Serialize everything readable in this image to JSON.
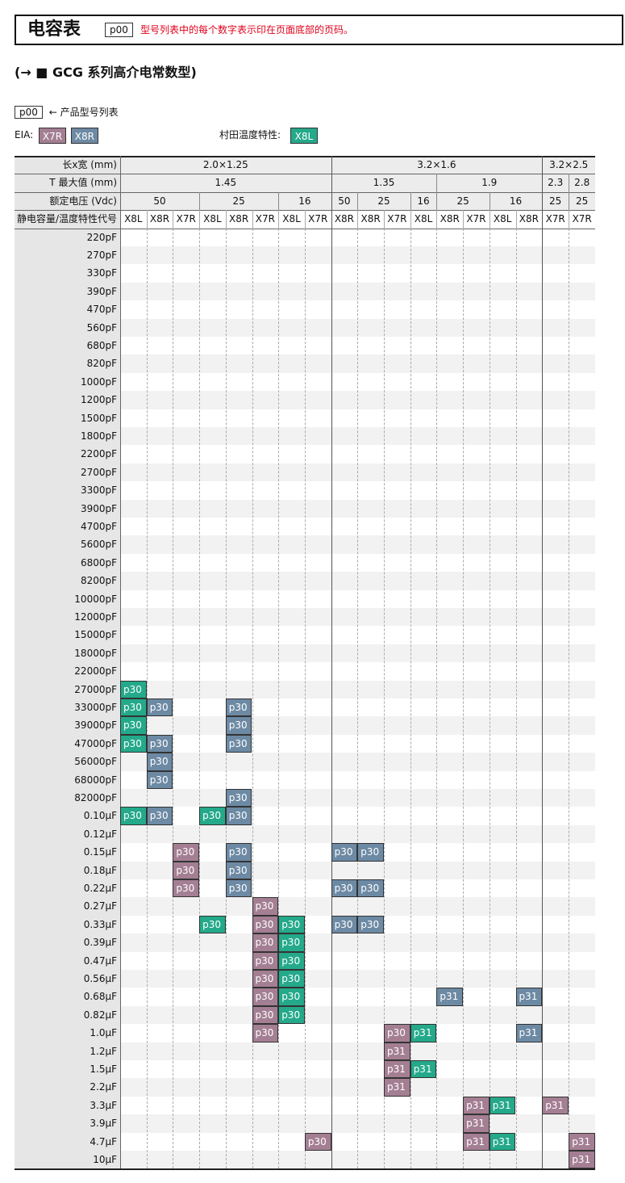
{
  "header": {
    "title": "电容表",
    "page_ref": "p00",
    "note": "型号列表中的每个数字表示印在页面底部的页码。"
  },
  "subtitle": "(→ ■ GCG 系列高介电常数型)",
  "legend": {
    "page_ref": "p00",
    "arrow_text": "← 产品型号列表",
    "eia_label": "EIA:",
    "eia_chips": [
      "X7R",
      "X8R"
    ],
    "murata_label": "村田温度特性:",
    "murata_chip": "X8L"
  },
  "colors": {
    "X7R": "#a47f93",
    "X8R": "#6d8aa4",
    "X8L": "#24a98a"
  },
  "table": {
    "row_headers": [
      "长x宽 (mm)",
      "T 最大值 (mm)",
      "额定电压 (Vdc)",
      "静电容量/温度特性代号"
    ],
    "size_groups": [
      {
        "label": "2.0×1.25",
        "span": 8
      },
      {
        "label": "3.2×1.6",
        "span": 8
      },
      {
        "label": "3.2×2.5",
        "span": 2
      }
    ],
    "t_groups": [
      {
        "label": "1.45",
        "span": 8
      },
      {
        "label": "1.35",
        "span": 4
      },
      {
        "label": "1.9",
        "span": 4
      },
      {
        "label": "2.3",
        "span": 1
      },
      {
        "label": "2.8",
        "span": 1
      }
    ],
    "voltage_groups": [
      {
        "label": "50",
        "span": 3
      },
      {
        "label": "25",
        "span": 3
      },
      {
        "label": "16",
        "span": 2
      },
      {
        "label": "50",
        "span": 1
      },
      {
        "label": "25",
        "span": 2
      },
      {
        "label": "16",
        "span": 1
      },
      {
        "label": "25",
        "span": 2
      },
      {
        "label": "16",
        "span": 2
      },
      {
        "label": "25",
        "span": 1
      },
      {
        "label": "25",
        "span": 1
      }
    ],
    "columns": [
      "X8L",
      "X8R",
      "X7R",
      "X8L",
      "X8R",
      "X7R",
      "X8L",
      "X7R",
      "X8R",
      "X8R",
      "X7R",
      "X8L",
      "X8R",
      "X7R",
      "X8L",
      "X8R",
      "X7R",
      "X7R"
    ],
    "capacitances": [
      "220pF",
      "270pF",
      "330pF",
      "390pF",
      "470pF",
      "560pF",
      "680pF",
      "820pF",
      "1000pF",
      "1200pF",
      "1500pF",
      "1800pF",
      "2200pF",
      "2700pF",
      "3300pF",
      "3900pF",
      "4700pF",
      "5600pF",
      "6800pF",
      "8200pF",
      "10000pF",
      "12000pF",
      "15000pF",
      "18000pF",
      "22000pF",
      "27000pF",
      "33000pF",
      "39000pF",
      "47000pF",
      "56000pF",
      "68000pF",
      "82000pF",
      "0.10µF",
      "0.12µF",
      "0.15µF",
      "0.18µF",
      "0.22µF",
      "0.27µF",
      "0.33µF",
      "0.39µF",
      "0.47µF",
      "0.56µF",
      "0.68µF",
      "0.82µF",
      "1.0µF",
      "1.2µF",
      "1.5µF",
      "2.2µF",
      "3.3µF",
      "3.9µF",
      "4.7µF",
      "10µF"
    ],
    "entries": [
      {
        "row": 25,
        "col": 0,
        "text": "p30"
      },
      {
        "row": 26,
        "col": 0,
        "text": "p30"
      },
      {
        "row": 26,
        "col": 1,
        "text": "p30"
      },
      {
        "row": 26,
        "col": 4,
        "text": "p30"
      },
      {
        "row": 27,
        "col": 0,
        "text": "p30"
      },
      {
        "row": 27,
        "col": 4,
        "text": "p30"
      },
      {
        "row": 28,
        "col": 0,
        "text": "p30"
      },
      {
        "row": 28,
        "col": 1,
        "text": "p30"
      },
      {
        "row": 28,
        "col": 4,
        "text": "p30"
      },
      {
        "row": 29,
        "col": 1,
        "text": "p30"
      },
      {
        "row": 30,
        "col": 1,
        "text": "p30"
      },
      {
        "row": 31,
        "col": 4,
        "text": "p30"
      },
      {
        "row": 32,
        "col": 0,
        "text": "p30"
      },
      {
        "row": 32,
        "col": 1,
        "text": "p30"
      },
      {
        "row": 32,
        "col": 3,
        "text": "p30"
      },
      {
        "row": 32,
        "col": 4,
        "text": "p30"
      },
      {
        "row": 34,
        "col": 2,
        "text": "p30"
      },
      {
        "row": 34,
        "col": 4,
        "text": "p30"
      },
      {
        "row": 34,
        "col": 8,
        "text": "p30"
      },
      {
        "row": 34,
        "col": 9,
        "text": "p30"
      },
      {
        "row": 35,
        "col": 2,
        "text": "p30"
      },
      {
        "row": 35,
        "col": 4,
        "text": "p30"
      },
      {
        "row": 36,
        "col": 2,
        "text": "p30"
      },
      {
        "row": 36,
        "col": 4,
        "text": "p30"
      },
      {
        "row": 36,
        "col": 8,
        "text": "p30"
      },
      {
        "row": 36,
        "col": 9,
        "text": "p30"
      },
      {
        "row": 37,
        "col": 5,
        "text": "p30"
      },
      {
        "row": 38,
        "col": 3,
        "text": "p30"
      },
      {
        "row": 38,
        "col": 5,
        "text": "p30"
      },
      {
        "row": 38,
        "col": 6,
        "text": "p30"
      },
      {
        "row": 38,
        "col": 8,
        "text": "p30"
      },
      {
        "row": 38,
        "col": 9,
        "text": "p30"
      },
      {
        "row": 39,
        "col": 5,
        "text": "p30"
      },
      {
        "row": 39,
        "col": 6,
        "text": "p30"
      },
      {
        "row": 40,
        "col": 5,
        "text": "p30"
      },
      {
        "row": 40,
        "col": 6,
        "text": "p30"
      },
      {
        "row": 41,
        "col": 5,
        "text": "p30"
      },
      {
        "row": 41,
        "col": 6,
        "text": "p30"
      },
      {
        "row": 42,
        "col": 5,
        "text": "p30"
      },
      {
        "row": 42,
        "col": 6,
        "text": "p30"
      },
      {
        "row": 42,
        "col": 12,
        "text": "p31"
      },
      {
        "row": 42,
        "col": 15,
        "text": "p31"
      },
      {
        "row": 43,
        "col": 5,
        "text": "p30"
      },
      {
        "row": 43,
        "col": 6,
        "text": "p30"
      },
      {
        "row": 44,
        "col": 5,
        "text": "p30"
      },
      {
        "row": 44,
        "col": 10,
        "text": "p30"
      },
      {
        "row": 44,
        "col": 11,
        "text": "p31"
      },
      {
        "row": 44,
        "col": 15,
        "text": "p31"
      },
      {
        "row": 45,
        "col": 10,
        "text": "p31"
      },
      {
        "row": 46,
        "col": 10,
        "text": "p31"
      },
      {
        "row": 46,
        "col": 11,
        "text": "p31"
      },
      {
        "row": 47,
        "col": 10,
        "text": "p31"
      },
      {
        "row": 48,
        "col": 13,
        "text": "p31"
      },
      {
        "row": 48,
        "col": 14,
        "text": "p31"
      },
      {
        "row": 48,
        "col": 16,
        "text": "p31"
      },
      {
        "row": 49,
        "col": 13,
        "text": "p31"
      },
      {
        "row": 50,
        "col": 7,
        "text": "p30"
      },
      {
        "row": 50,
        "col": 13,
        "text": "p31"
      },
      {
        "row": 50,
        "col": 14,
        "text": "p31"
      },
      {
        "row": 50,
        "col": 17,
        "text": "p31"
      },
      {
        "row": 51,
        "col": 17,
        "text": "p31"
      }
    ]
  }
}
